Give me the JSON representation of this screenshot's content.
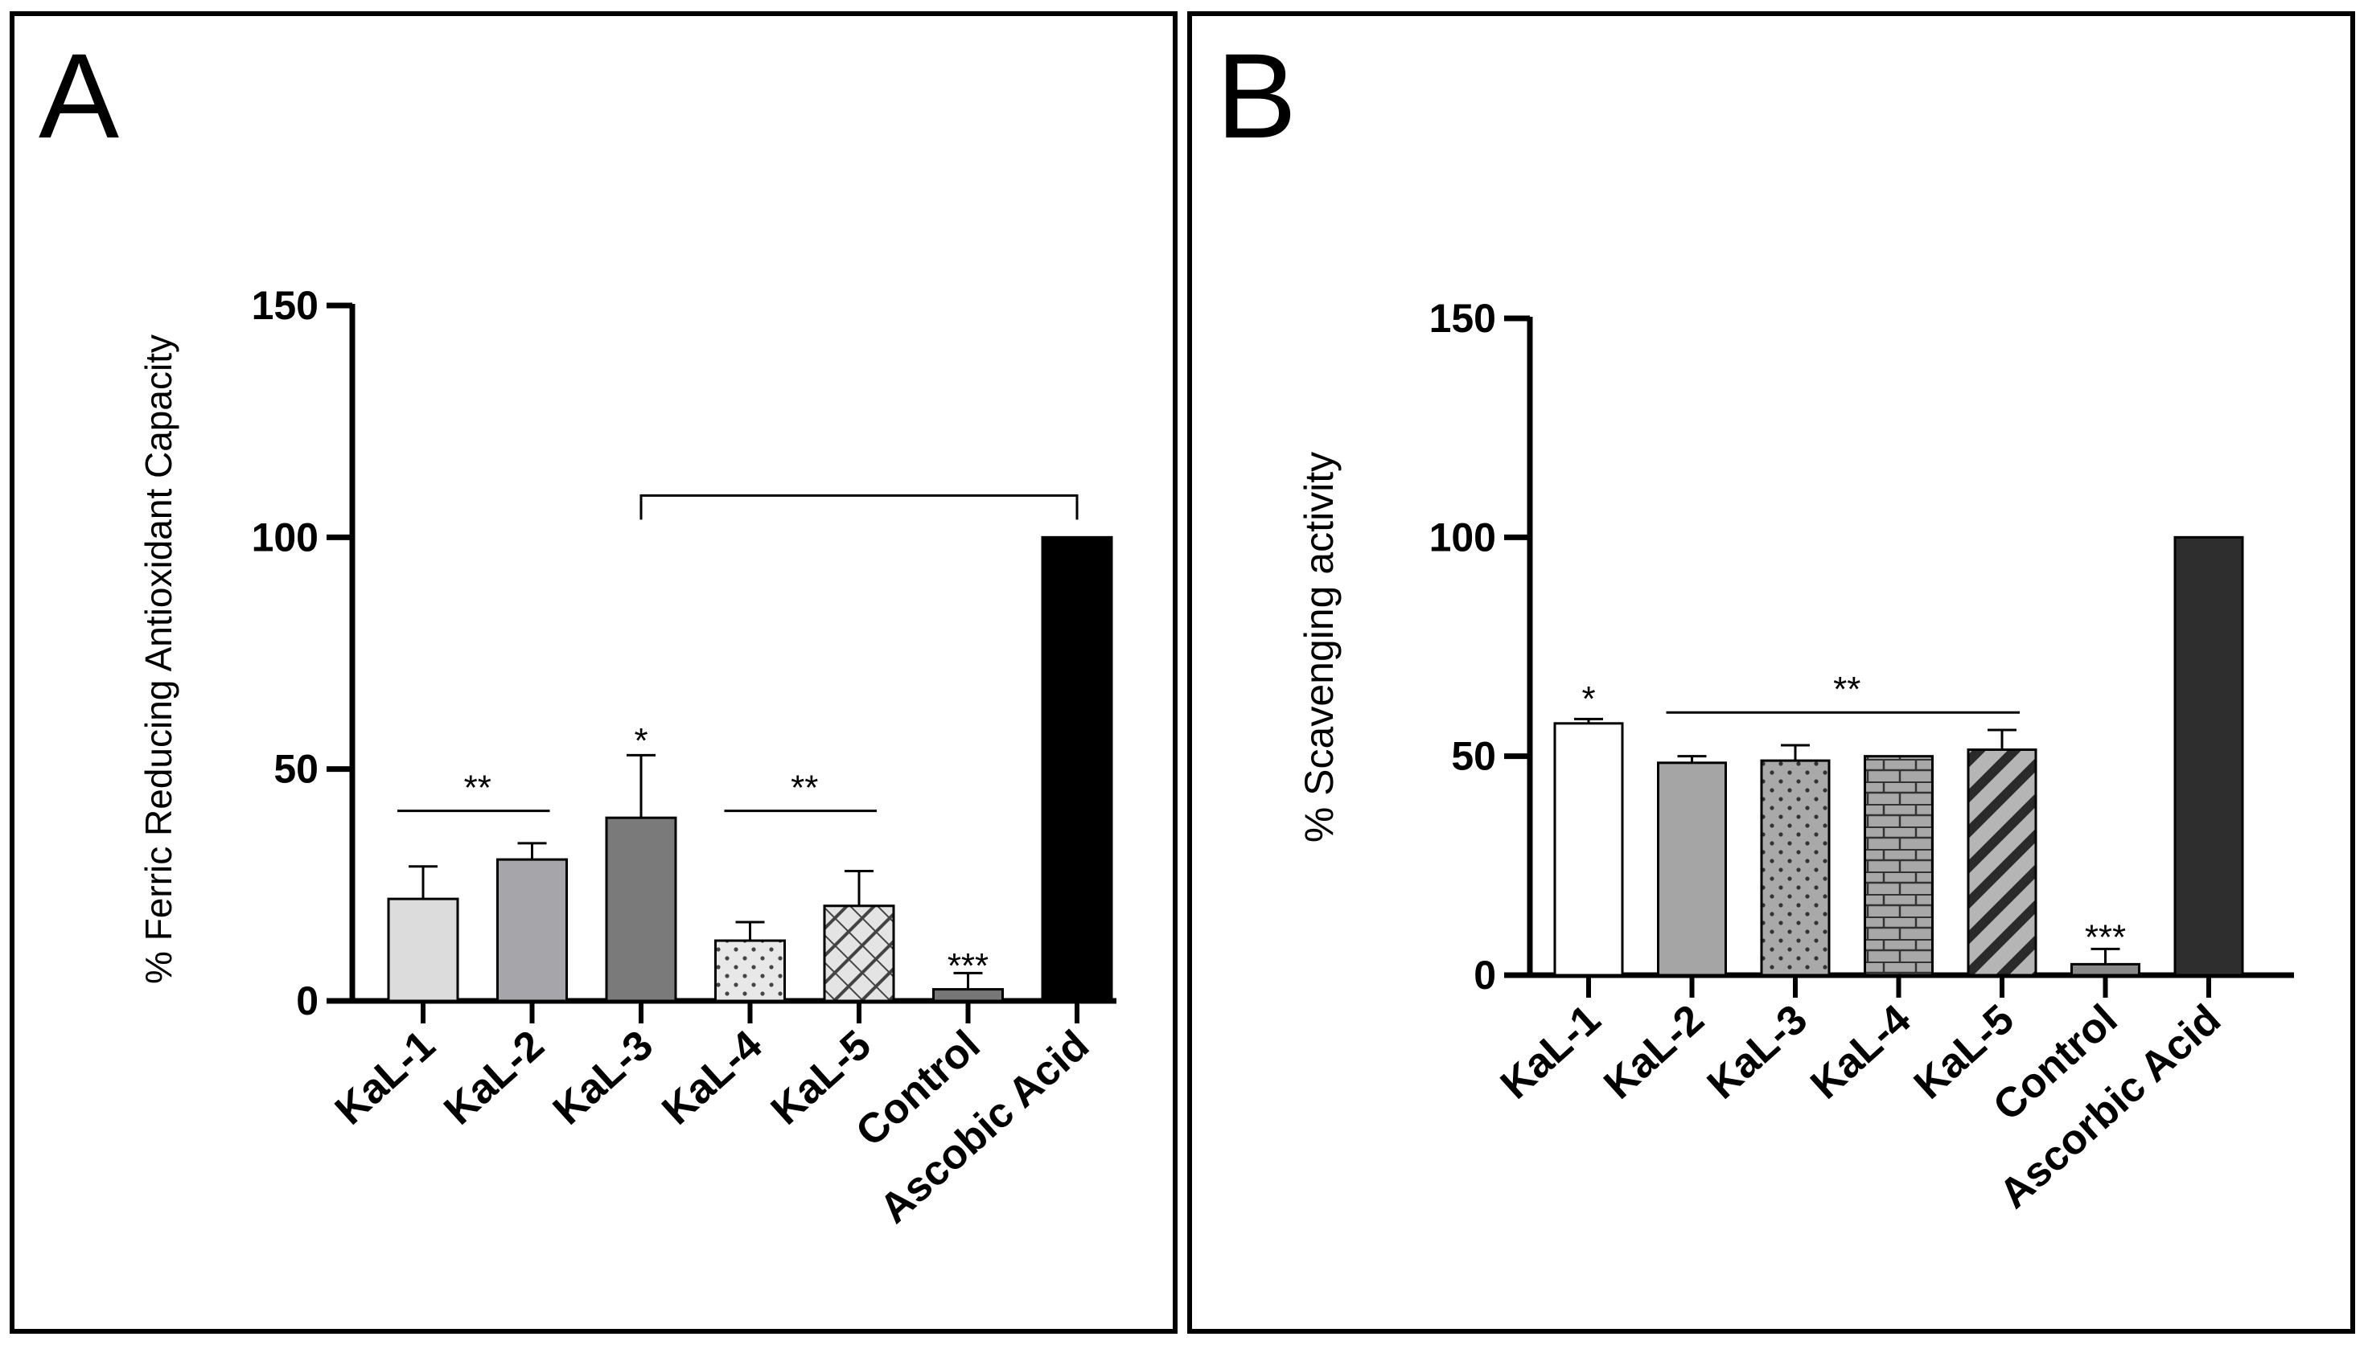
{
  "chart_data": [
    {
      "panel": "A",
      "type": "bar",
      "title": "",
      "xlabel": "",
      "ylabel": "% Ferric Reducing Antioxidant Capacity",
      "ylim": [
        0,
        150
      ],
      "yticks": [
        0,
        50,
        100,
        150
      ],
      "categories": [
        "KaL-1",
        "KaL-2",
        "KaL-3",
        "KaL-4",
        "KaL-5",
        "Control",
        "Ascobic Acid"
      ],
      "values": [
        22,
        30.5,
        39.5,
        13,
        20.5,
        2.5,
        100
      ],
      "errors": [
        7,
        3.5,
        13.5,
        4,
        7.5,
        3.5,
        0
      ],
      "colors": [
        "#dcdcdc",
        "#a5a5aa",
        "#7a7a7a",
        "#ececec",
        "#e2e2e2",
        "#777777",
        "#000000"
      ],
      "patterns": [
        "solid",
        "solid",
        "solid",
        "dots",
        "diagonal-grid",
        "solid",
        "solid"
      ],
      "annotations": [
        {
          "text": "**",
          "type": "bracket",
          "from": 0,
          "to": 1,
          "y": 41
        },
        {
          "text": "*",
          "type": "star",
          "bar": 2,
          "y": 56
        },
        {
          "text": "**",
          "type": "bracket",
          "from": 3,
          "to": 4,
          "y": 41
        },
        {
          "text": "***",
          "type": "star",
          "bar": 5,
          "y": 7.5
        },
        {
          "text": "",
          "type": "bracket-drop",
          "from": 2,
          "to": 6,
          "y": 109
        }
      ]
    },
    {
      "panel": "B",
      "type": "bar",
      "title": "",
      "xlabel": "",
      "ylabel": "% Scavenging activity",
      "ylim": [
        0,
        150
      ],
      "yticks": [
        0,
        50,
        100,
        150
      ],
      "categories": [
        "KaL-1",
        "KaL-2",
        "KaL-3",
        "KaL-4",
        "KaL-5",
        "Control",
        "Ascorbic Acid"
      ],
      "values": [
        57.5,
        48.5,
        49,
        50,
        51.5,
        2.5,
        100
      ],
      "errors": [
        1,
        1.5,
        3.5,
        0,
        4.5,
        3.5,
        0
      ],
      "colors": [
        "#ffffff",
        "#a5a5a5",
        "#a8a8a8",
        "#a5a5a5",
        "#a5a5a5",
        "#888888",
        "#2e2e2e"
      ],
      "patterns": [
        "solid",
        "solid",
        "dots",
        "bricks",
        "diagonal-stripes",
        "solid",
        "solid"
      ],
      "annotations": [
        {
          "text": "*",
          "type": "star",
          "bar": 0,
          "y": 63
        },
        {
          "text": "**",
          "type": "bracket",
          "from": 1,
          "to": 4,
          "y": 60
        },
        {
          "text": "***",
          "type": "star",
          "bar": 5,
          "y": 8.5
        }
      ]
    }
  ],
  "panels": {
    "a_letter": "A",
    "b_letter": "B"
  }
}
